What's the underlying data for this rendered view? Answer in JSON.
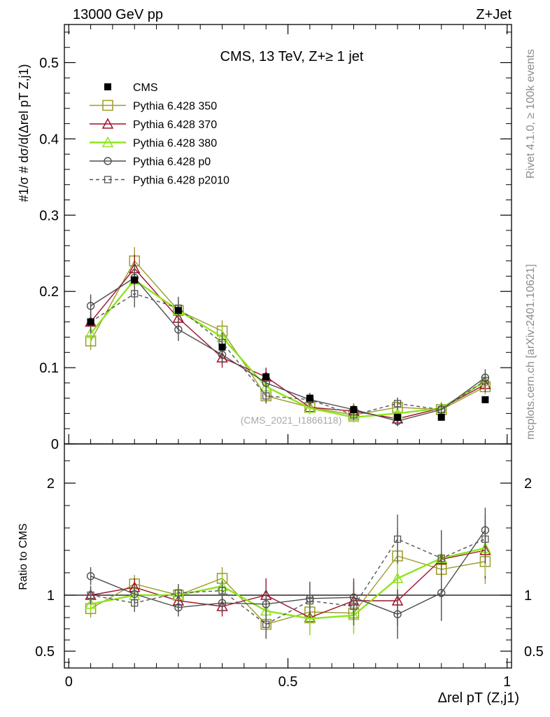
{
  "header": {
    "left": "13000 GeV pp",
    "right": "Z+Jet"
  },
  "side_labels": {
    "rivet": "Rivet 4.1.0, ≥ 100k events",
    "mcplots": "mcplots.cern.ch [arXiv:2401.10621]"
  },
  "watermark": "(CMS_2021_I1866118)",
  "plot_title": "CMS, 13 TeV, Z+≥ 1 jet",
  "upper_ylabel": "#1/σ # dσ/d(Δrel pT Z,j1)",
  "lower_ylabel": "Ratio to CMS",
  "xlabel": "Δrel pT (Z,j1)",
  "legend": [
    "CMS",
    "Pythia 6.428 350",
    "Pythia 6.428 370",
    "Pythia 6.428 380",
    "Pythia 6.428 p0",
    "Pythia 6.428 p2010"
  ],
  "chart_data": {
    "type": "line",
    "x": [
      0.05,
      0.15,
      0.25,
      0.35,
      0.45,
      0.55,
      0.65,
      0.75,
      0.85,
      0.95
    ],
    "xlim": [
      -0.01,
      1.01
    ],
    "upper_ylim": [
      0,
      0.55
    ],
    "ratio_ylim": [
      0.35,
      2.35
    ],
    "x_ticks": [
      "0",
      "0.5",
      "1"
    ],
    "upper_y_ticks": [
      "0",
      "0.1",
      "0.2",
      "0.3",
      "0.4",
      "0.5"
    ],
    "ratio_y_ticks": [
      "0.5",
      "1",
      "2"
    ],
    "series": [
      {
        "name": "CMS",
        "color": "#000000",
        "marker": "filled-square",
        "dashed": false,
        "values": [
          0.16,
          0.215,
          0.175,
          0.127,
          0.088,
          0.06,
          0.045,
          0.035,
          0.035,
          0.058
        ],
        "errors": [
          0.004,
          0.005,
          0.004,
          0.004,
          0.003,
          0.003,
          0.002,
          0.002,
          0.002,
          0.002
        ],
        "ratio": [
          1,
          1,
          1,
          1,
          1,
          1,
          1,
          1,
          1,
          1
        ],
        "ratio_err": [
          0,
          0,
          0,
          0,
          0,
          0,
          0,
          0,
          0,
          0
        ]
      },
      {
        "name": "Pythia 6.428 350",
        "color": "#9b9b2a",
        "marker": "open-square",
        "dashed": false,
        "values": [
          0.135,
          0.24,
          0.175,
          0.148,
          0.063,
          0.048,
          0.038,
          0.048,
          0.045,
          0.075
        ],
        "errors": [
          0.012,
          0.018,
          0.015,
          0.014,
          0.01,
          0.008,
          0.007,
          0.008,
          0.008,
          0.01
        ],
        "ratio": [
          0.88,
          1.1,
          1.0,
          1.15,
          0.74,
          0.85,
          0.84,
          1.35,
          1.23,
          1.3
        ],
        "ratio_err": [
          0.08,
          0.08,
          0.08,
          0.1,
          0.12,
          0.15,
          0.17,
          0.25,
          0.25,
          0.2
        ]
      },
      {
        "name": "Pythia 6.428 370",
        "color": "#a0112b",
        "marker": "open-triangle",
        "dashed": false,
        "values": [
          0.16,
          0.23,
          0.165,
          0.113,
          0.088,
          0.048,
          0.043,
          0.033,
          0.047,
          0.078
        ],
        "errors": [
          0.012,
          0.018,
          0.015,
          0.013,
          0.012,
          0.008,
          0.007,
          0.007,
          0.008,
          0.01
        ],
        "ratio": [
          1.0,
          1.07,
          0.95,
          0.9,
          1.0,
          0.8,
          0.95,
          0.95,
          1.32,
          1.4
        ],
        "ratio_err": [
          0.08,
          0.08,
          0.08,
          0.09,
          0.15,
          0.15,
          0.17,
          0.22,
          0.25,
          0.25
        ]
      },
      {
        "name": "Pythia 6.428 380",
        "color": "#8fe41f",
        "marker": "open-triangle",
        "dashed": false,
        "values": [
          0.145,
          0.215,
          0.175,
          0.14,
          0.075,
          0.047,
          0.035,
          0.04,
          0.047,
          0.082
        ],
        "errors": [
          0.012,
          0.018,
          0.015,
          0.014,
          0.011,
          0.008,
          0.007,
          0.007,
          0.008,
          0.01
        ],
        "ratio": [
          0.92,
          1.0,
          1.0,
          1.08,
          0.86,
          0.79,
          0.82,
          1.15,
          1.33,
          1.42
        ],
        "ratio_err": [
          0.08,
          0.08,
          0.08,
          0.1,
          0.15,
          0.15,
          0.17,
          0.22,
          0.25,
          0.25
        ]
      },
      {
        "name": "Pythia 6.428 p0",
        "color": "#4d4d4d",
        "marker": "open-circle",
        "dashed": false,
        "values": [
          0.181,
          0.218,
          0.15,
          0.117,
          0.08,
          0.058,
          0.045,
          0.03,
          0.045,
          0.087
        ],
        "errors": [
          0.015,
          0.018,
          0.015,
          0.013,
          0.011,
          0.009,
          0.008,
          0.007,
          0.008,
          0.011
        ],
        "ratio": [
          1.17,
          1.01,
          0.89,
          0.93,
          0.92,
          0.97,
          0.98,
          0.83,
          1.02,
          1.58
        ],
        "ratio_err": [
          0.08,
          0.08,
          0.08,
          0.09,
          0.15,
          0.15,
          0.17,
          0.22,
          0.25,
          0.2
        ]
      },
      {
        "name": "Pythia 6.428 p2010",
        "color": "#555555",
        "marker": "open-square-small",
        "dashed": true,
        "values": [
          0.16,
          0.197,
          0.178,
          0.133,
          0.063,
          0.058,
          0.038,
          0.053,
          0.045,
          0.083
        ],
        "errors": [
          0.015,
          0.018,
          0.015,
          0.013,
          0.01,
          0.008,
          0.007,
          0.008,
          0.008,
          0.01
        ],
        "ratio": [
          1.0,
          0.93,
          1.02,
          1.04,
          0.74,
          0.95,
          0.9,
          1.5,
          1.33,
          1.5
        ],
        "ratio_err": [
          0.08,
          0.08,
          0.08,
          0.09,
          0.13,
          0.15,
          0.17,
          0.22,
          0.25,
          0.22
        ]
      }
    ]
  }
}
